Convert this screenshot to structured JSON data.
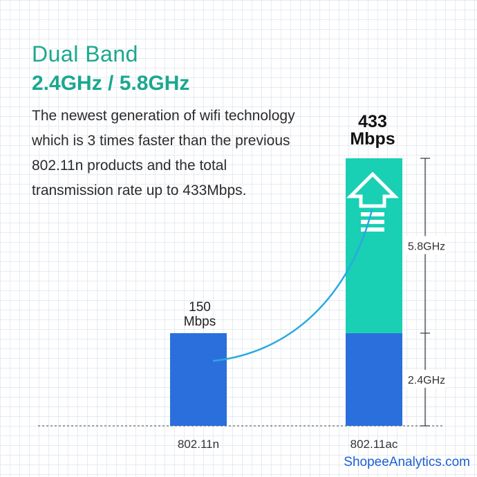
{
  "header": {
    "title": "Dual Band",
    "subtitle": "2.4GHz / 5.8GHz",
    "description_lines": [
      "The newest generation of wifi technology",
      "which is 3 times faster than the previous",
      "802.11n products and the total",
      "transmission rate up to 433Mbps."
    ]
  },
  "colors": {
    "accent": "#1aa88f",
    "bar_blue": "#2a6fdc",
    "bar_teal": "#19cfb4",
    "curve": "#2aa9e0"
  },
  "chart_data": {
    "type": "bar",
    "categories": [
      "802.11n",
      "802.11ac"
    ],
    "bar_labels": [
      {
        "value": "150",
        "unit": "Mbps"
      },
      {
        "value": "433",
        "unit": "Mbps"
      }
    ],
    "series": [
      {
        "name": "2.4GHz",
        "values": [
          150,
          150
        ]
      },
      {
        "name": "5.8GHz",
        "values": [
          0,
          283
        ]
      }
    ],
    "bracket_labels": [
      "5.8GHz",
      "2.4GHz"
    ],
    "ylim": [
      0,
      433
    ],
    "grid": true
  },
  "footer": {
    "watermark": "ShopeeAnalytics.com"
  }
}
